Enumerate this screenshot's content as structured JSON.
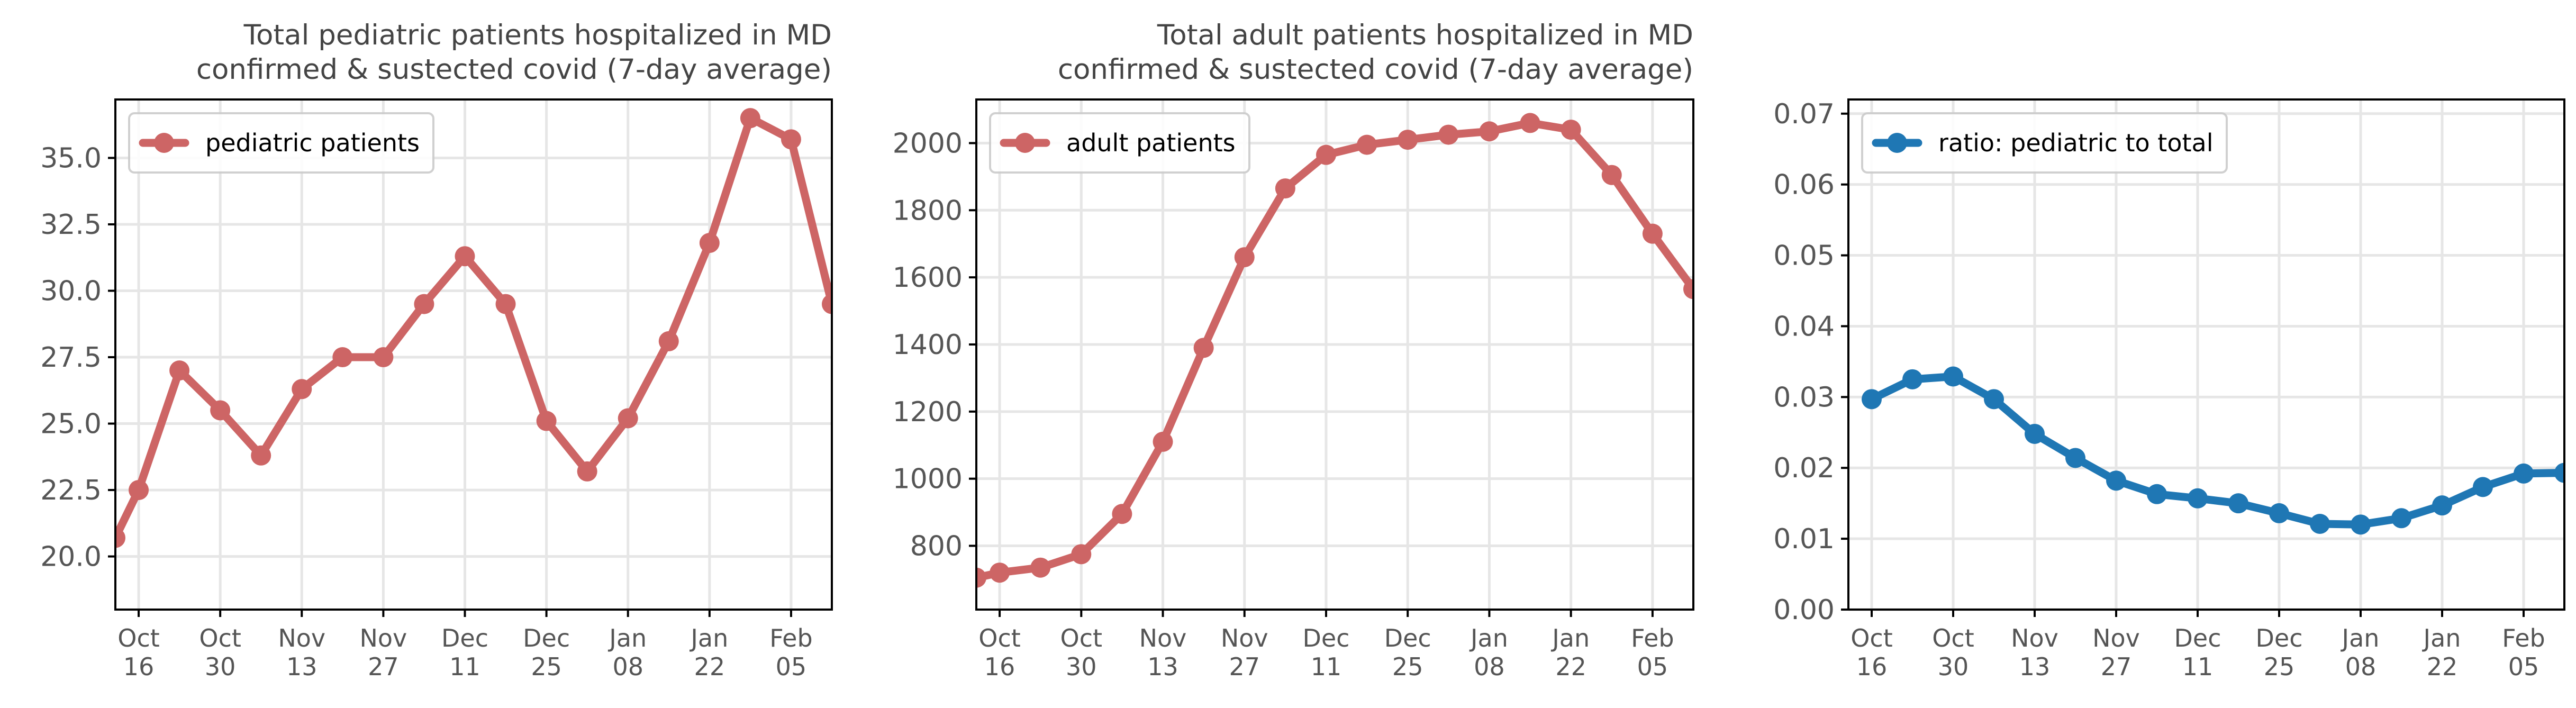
{
  "chart_data": [
    {
      "type": "line",
      "title": [
        "Total pediatric patients hospitalized in MD",
        "confirmed & sustected covid (7-day average)"
      ],
      "xlabel": "",
      "ylabel": "",
      "x_ticks": [
        [
          "Oct",
          "16"
        ],
        [
          "Oct",
          "30"
        ],
        [
          "Nov",
          "13"
        ],
        [
          "Nov",
          "27"
        ],
        [
          "Dec",
          "11"
        ],
        [
          "Dec",
          "25"
        ],
        [
          "Jan",
          "08"
        ],
        [
          "Jan",
          "22"
        ],
        [
          "Feb",
          "05"
        ]
      ],
      "y_ticks": [
        "20.0",
        "22.5",
        "25.0",
        "27.5",
        "30.0",
        "32.5",
        "35.0"
      ],
      "ylim": [
        18.0,
        37.2
      ],
      "grid": true,
      "legend_position": "upper-left",
      "series": [
        {
          "name": "pediatric patients",
          "color": "#cd6565",
          "x": [
            "2020-10-12",
            "2020-10-16",
            "2020-10-23",
            "2020-10-30",
            "2020-11-06",
            "2020-11-13",
            "2020-11-20",
            "2020-11-27",
            "2020-12-04",
            "2020-12-11",
            "2020-12-18",
            "2020-12-25",
            "2021-01-01",
            "2021-01-08",
            "2021-01-15",
            "2021-01-22",
            "2021-01-29",
            "2021-02-05",
            "2021-02-12"
          ],
          "values": [
            20.7,
            22.5,
            27.0,
            25.5,
            23.8,
            26.3,
            27.5,
            27.5,
            29.5,
            31.3,
            29.5,
            25.1,
            23.2,
            25.2,
            28.1,
            31.8,
            36.5,
            35.7,
            29.5
          ]
        }
      ]
    },
    {
      "type": "line",
      "title": [
        "Total adult patients hospitalized in MD",
        "confirmed & sustected covid (7-day average)"
      ],
      "xlabel": "",
      "ylabel": "",
      "x_ticks": [
        [
          "Oct",
          "16"
        ],
        [
          "Oct",
          "30"
        ],
        [
          "Nov",
          "13"
        ],
        [
          "Nov",
          "27"
        ],
        [
          "Dec",
          "11"
        ],
        [
          "Dec",
          "25"
        ],
        [
          "Jan",
          "08"
        ],
        [
          "Jan",
          "22"
        ],
        [
          "Feb",
          "05"
        ]
      ],
      "y_ticks": [
        "800",
        "1000",
        "1200",
        "1400",
        "1600",
        "1800",
        "2000"
      ],
      "ylim": [
        610,
        2130
      ],
      "grid": true,
      "legend_position": "upper-left",
      "series": [
        {
          "name": "adult patients",
          "color": "#cd6565",
          "x": [
            "2020-10-12",
            "2020-10-16",
            "2020-10-23",
            "2020-10-30",
            "2020-11-06",
            "2020-11-13",
            "2020-11-20",
            "2020-11-27",
            "2020-12-04",
            "2020-12-11",
            "2020-12-18",
            "2020-12-25",
            "2021-01-01",
            "2021-01-08",
            "2021-01-15",
            "2021-01-22",
            "2021-01-29",
            "2021-02-05",
            "2021-02-12"
          ],
          "values": [
            705,
            720,
            735,
            775,
            895,
            1110,
            1390,
            1660,
            1865,
            1965,
            1995,
            2010,
            2025,
            2035,
            2060,
            2040,
            1905,
            1730,
            1565
          ]
        }
      ]
    },
    {
      "type": "line",
      "title": [],
      "xlabel": "",
      "ylabel": "",
      "x_ticks": [
        [
          "Oct",
          "16"
        ],
        [
          "Oct",
          "30"
        ],
        [
          "Nov",
          "13"
        ],
        [
          "Nov",
          "27"
        ],
        [
          "Dec",
          "11"
        ],
        [
          "Dec",
          "25"
        ],
        [
          "Jan",
          "08"
        ],
        [
          "Jan",
          "22"
        ],
        [
          "Feb",
          "05"
        ]
      ],
      "y_ticks": [
        "0.00",
        "0.01",
        "0.02",
        "0.03",
        "0.04",
        "0.05",
        "0.06",
        "0.07"
      ],
      "ylim": [
        0.0,
        0.072
      ],
      "grid": true,
      "legend_position": "upper-left",
      "series": [
        {
          "name": "ratio: pediatric to total",
          "color": "#1f77b4",
          "x": [
            "2020-10-16",
            "2020-10-23",
            "2020-10-30",
            "2020-11-06",
            "2020-11-13",
            "2020-11-20",
            "2020-11-27",
            "2020-12-04",
            "2020-12-11",
            "2020-12-18",
            "2020-12-25",
            "2021-01-01",
            "2021-01-08",
            "2021-01-15",
            "2021-01-22",
            "2021-01-29",
            "2021-02-05",
            "2021-02-12"
          ],
          "values": [
            0.0297,
            0.0325,
            0.0329,
            0.0297,
            0.0248,
            0.0214,
            0.0182,
            0.0163,
            0.0157,
            0.015,
            0.0136,
            0.0121,
            0.012,
            0.0129,
            0.0147,
            0.0173,
            0.0192,
            0.0193
          ]
        }
      ]
    }
  ]
}
